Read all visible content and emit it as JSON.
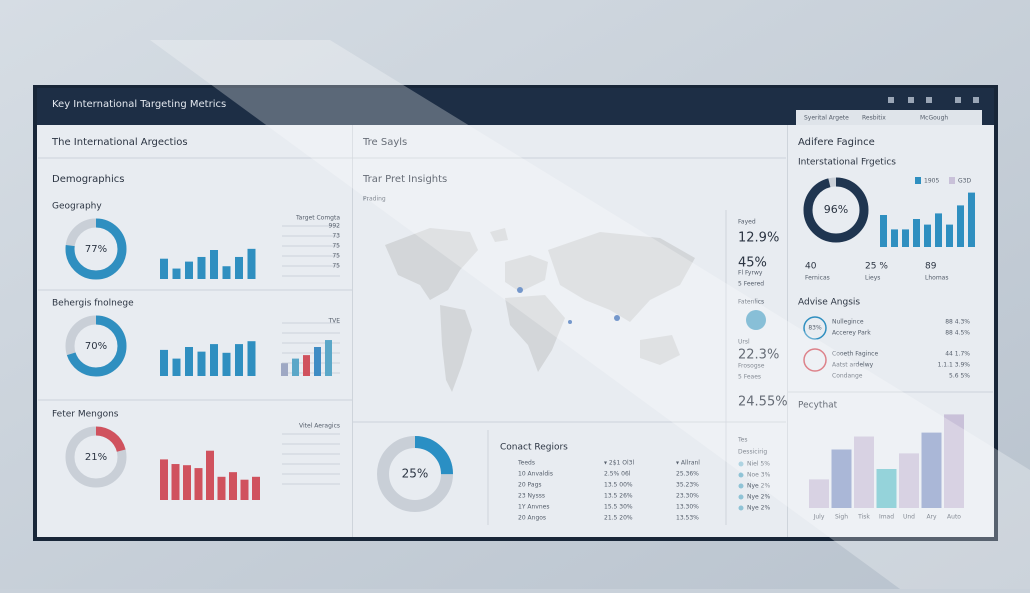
{
  "window": {
    "title": "Key International Targeting Metrics",
    "tabs": [
      "Syerital Argete",
      "Resbitix",
      "McGough"
    ]
  },
  "left": {
    "header": "The International Argectios",
    "section": "Demographics",
    "panels": [
      {
        "title": "Geography",
        "donut": {
          "value": 77,
          "label": "77%"
        },
        "color": "#2f8fc0",
        "legend": "Target Comgta",
        "scale": [
          "992",
          "73",
          "75",
          "75",
          "75"
        ],
        "bars": [
          35,
          18,
          30,
          38,
          50,
          22,
          38,
          52
        ]
      },
      {
        "title": "Behergis fnolnege",
        "donut": {
          "value": 70,
          "label": "70%"
        },
        "color": "#2f8fc0",
        "legend": "TVE",
        "bars": [
          45,
          30,
          50,
          42,
          55,
          40,
          55,
          60
        ],
        "bars2": [
          22,
          30,
          36,
          50,
          62
        ],
        "bars2_colors": [
          "#9ea8c4",
          "#5aa7c8",
          "#d0525e",
          "#3f8cc4",
          "#5aa7c8"
        ]
      },
      {
        "title": "Feter Mengons",
        "donut": {
          "value": 21,
          "label": "21%"
        },
        "color": "#d0525e",
        "legend": "Vitel Aeragics",
        "bars": [
          70,
          62,
          60,
          55,
          85,
          40,
          48,
          35,
          40
        ]
      }
    ]
  },
  "middle": {
    "header": "Tre Sayls",
    "title": "Trar Pret Insights",
    "subtitle": "Prading",
    "stats": [
      "Fayed",
      "12.9%",
      "45%",
      "Fl Fyrwy",
      "5 Feered",
      "Fatenlics",
      "Ursl",
      "22.3%",
      "Frosogse",
      "5 Feaes",
      "24.55%"
    ],
    "donut": {
      "value": 25,
      "label": "25%"
    },
    "color": "#2a8fc4",
    "regions": {
      "title": "Conact Regiors",
      "columns": [
        "Teeds",
        "▾ 2$1 Ol3l",
        "▾ Allranl"
      ],
      "rows": [
        [
          "10 Anvaldis",
          "2.5% 06l",
          "25.36%"
        ],
        [
          "20 Pags",
          "13.5 00%",
          "35.23%"
        ],
        [
          "23 Nysss",
          "13.5 26%",
          "23.30%"
        ],
        [
          "1Y Anvnes",
          "15.5 30%",
          "13.30%"
        ],
        [
          "20 Angos",
          "21.5 20%",
          "13.53%"
        ]
      ]
    },
    "legend": {
      "title": "Tes",
      "subtitle": "Dessicirig",
      "items": [
        "Niel 5%",
        "Noe 3%",
        "Nye 2%",
        "Nye 2%",
        "Nye 2%"
      ]
    }
  },
  "right": {
    "header": "Adifere Fagince",
    "title": "Interstational Frgetics",
    "donut": {
      "value": 96,
      "label": "96%"
    },
    "color": "#1f3550",
    "legend": [
      "1905",
      "G3D"
    ],
    "bars": [
      40,
      22,
      22,
      35,
      28,
      42,
      28,
      52,
      68
    ],
    "stats": [
      [
        "40",
        "Fernicas"
      ],
      [
        "25 %",
        "Lieys"
      ],
      [
        "89",
        "Lhomas"
      ]
    ],
    "analysis": {
      "title": "Advise Angsis",
      "items": [
        {
          "icon": "83%",
          "lines": [
            "Nullegince",
            "Accerey Park"
          ],
          "values": [
            "88 4.3%",
            "88 4.5%"
          ]
        },
        {
          "icon": "",
          "lines": [
            "Cooeth Fagince",
            "Aatst ardelwy",
            "Condange"
          ],
          "values": [
            "44 1.7%",
            "1.1.1 3.9%",
            "5.6 5%"
          ]
        }
      ]
    },
    "trend": {
      "title": "Pecythat",
      "categories": [
        "July",
        "Sigh",
        "Tisk",
        "Imad",
        "Und",
        "Ary",
        "Auto"
      ],
      "values": [
        22,
        45,
        55,
        30,
        42,
        58,
        72
      ],
      "colors": [
        "#c9c1d9",
        "#8a9cc8",
        "#c9c1d9",
        "#6cc3cc",
        "#c9c1d9",
        "#8a9cc8",
        "#c9c1d9"
      ]
    }
  }
}
